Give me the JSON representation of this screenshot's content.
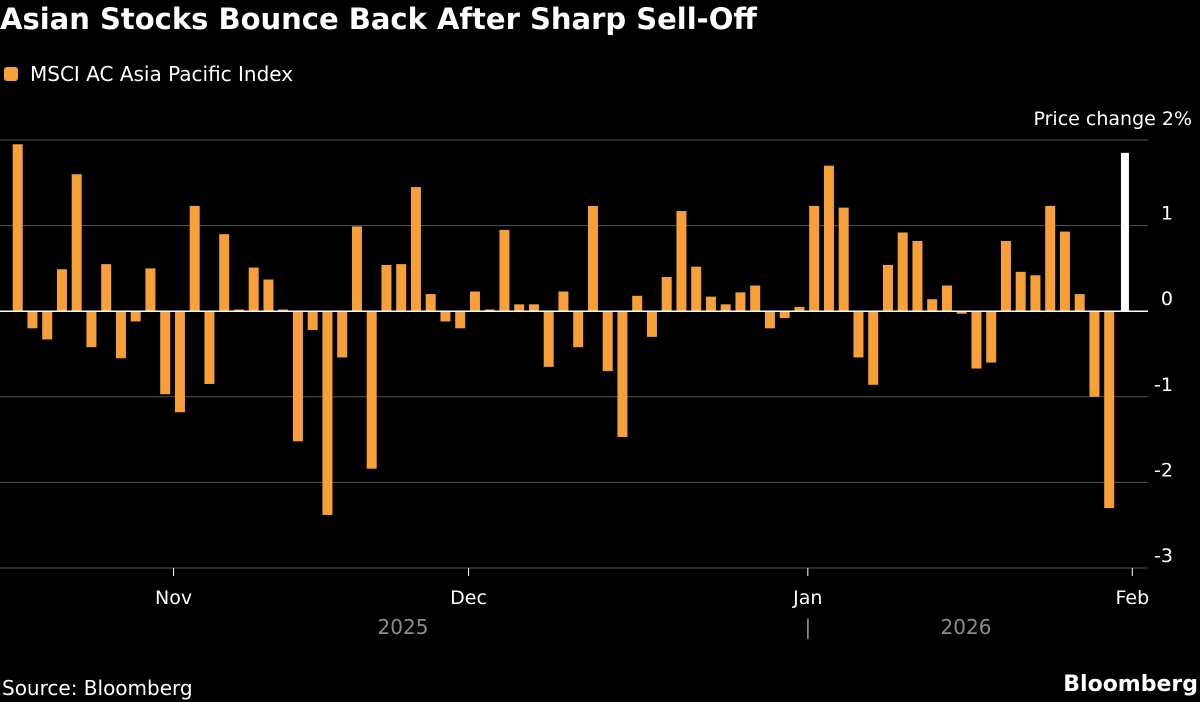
{
  "title": "Asian Stocks Bounce Back After Sharp Sell-Off",
  "source": "Source: Bloomberg",
  "brand": "Bloomberg",
  "colors": {
    "series": "#f7a03a",
    "latest": "#ffffff",
    "grid": "#555555",
    "axis": "#ffffff",
    "year": "#8c8c8c"
  },
  "chart_data": {
    "type": "bar",
    "unit_label": "Price change 2%",
    "series": [
      {
        "name": "MSCI AC Asia Pacific Index",
        "values": [
          1.95,
          -0.2,
          -0.33,
          0.49,
          1.6,
          -0.42,
          0.55,
          -0.55,
          -0.12,
          0.5,
          -0.97,
          -1.18,
          1.23,
          -0.85,
          0.9,
          0.02,
          0.51,
          0.37,
          0.02,
          -1.52,
          -0.22,
          -2.38,
          -0.54,
          0.99,
          -1.84,
          0.54,
          0.55,
          1.45,
          0.2,
          -0.12,
          -0.2,
          0.23,
          0.02,
          0.95,
          0.08,
          0.08,
          -0.65,
          0.23,
          -0.42,
          1.23,
          -0.7,
          -1.47,
          0.18,
          -0.3,
          0.4,
          1.17,
          0.52,
          0.17,
          0.08,
          0.22,
          0.3,
          -0.2,
          -0.08,
          0.05,
          1.23,
          1.7,
          1.21,
          -0.54,
          -0.86,
          0.54,
          0.92,
          0.82,
          0.14,
          0.3,
          -0.03,
          -0.67,
          -0.6,
          0.82,
          0.46,
          0.42,
          1.23,
          0.93,
          0.2,
          -1.0,
          -2.3
        ],
        "latest": 1.85
      }
    ],
    "y_ticks": [
      "1",
      "0",
      "-1",
      "-2",
      "-3"
    ],
    "y_tick_values": [
      1,
      0,
      -1,
      -2,
      -3
    ],
    "ylim": [
      -3.0,
      2.0
    ],
    "x_ticks": [
      "Nov",
      "Dec",
      "Jan",
      "Feb"
    ],
    "x_tick_bar_index": [
      11,
      31,
      54,
      76
    ],
    "years": [
      "2025",
      "2026"
    ],
    "year_separator": "|",
    "grid": true
  }
}
